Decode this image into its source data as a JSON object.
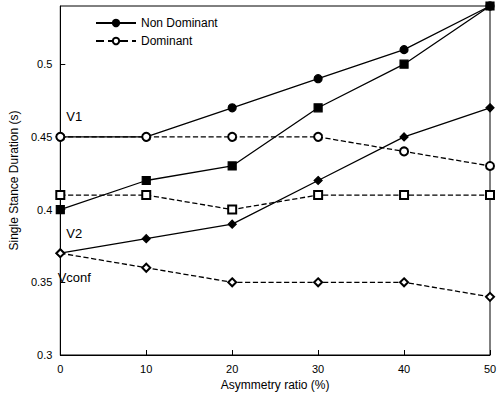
{
  "chart_data": {
    "type": "line",
    "x_label": "Asymmetry ratio (%)",
    "y_label": "Single Stance Duration (s)",
    "x": [
      0,
      10,
      20,
      30,
      40,
      50
    ],
    "xlim": [
      0,
      50
    ],
    "xticks": [
      0,
      10,
      20,
      30,
      40,
      50
    ],
    "ylim": [
      0.3,
      0.54
    ],
    "yticks": [
      0.3,
      0.35,
      0.4,
      0.45,
      0.5
    ],
    "grid": false,
    "legend": "upper left",
    "series": [
      {
        "name": "Non Dominant",
        "label": "V1",
        "color": "#000000",
        "marker": "circle",
        "line_style": "solid",
        "values": [
          0.45,
          0.45,
          0.47,
          0.49,
          0.51,
          0.54
        ]
      },
      {
        "name": "Dominant",
        "color": "#000000",
        "marker": "circle_open",
        "line_style": "dashed",
        "values": [
          0.45,
          0.45,
          0.45,
          0.45,
          0.44,
          0.43
        ]
      },
      {
        "name": "Non Dominant",
        "label": "V2",
        "color": "#000000",
        "marker": "square",
        "line_style": "solid",
        "values": [
          0.4,
          0.42,
          0.43,
          0.47,
          0.5,
          0.54
        ]
      },
      {
        "name": "Dominant",
        "color": "#000000",
        "marker": "square_open",
        "line_style": "dashed",
        "values": [
          0.41,
          0.41,
          0.4,
          0.41,
          0.41,
          0.41
        ]
      },
      {
        "name": "Non Dominant",
        "label": "Vconf",
        "color": "#000000",
        "marker": "diamond",
        "line_style": "solid",
        "values": [
          0.37,
          0.38,
          0.39,
          0.42,
          0.45,
          0.47
        ]
      },
      {
        "name": "Dominant",
        "color": "#000000",
        "marker": "diamond_open",
        "line_style": "dashed",
        "values": [
          0.37,
          0.36,
          0.35,
          0.35,
          0.35,
          0.34
        ]
      }
    ]
  }
}
